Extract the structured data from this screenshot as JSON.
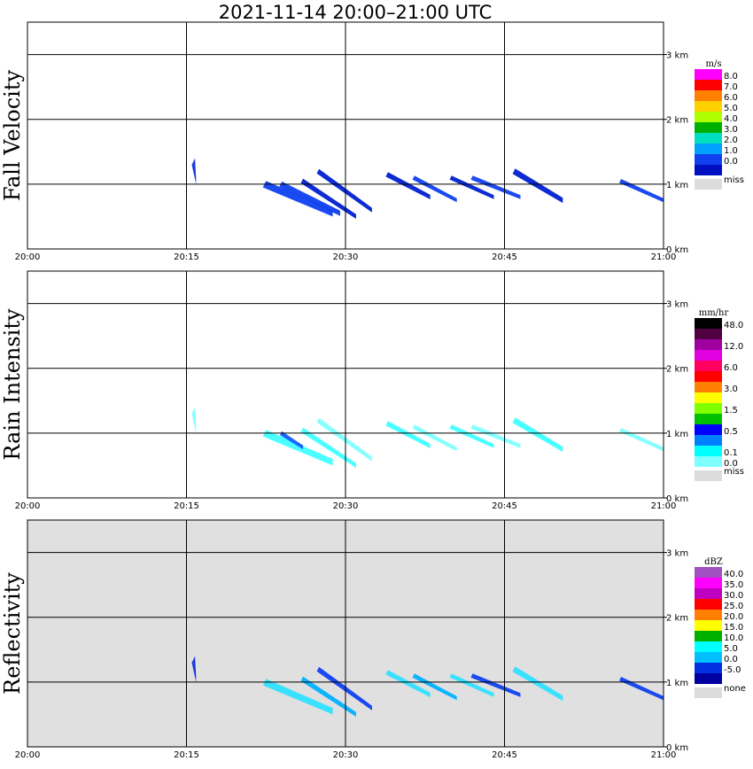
{
  "chart_data": {
    "type": "heatmap",
    "title": "2021-11-14   20:00–21:00 UTC",
    "x_ticks": [
      "20:00",
      "20:15",
      "20:30",
      "20:45",
      "21:00"
    ],
    "x_range_minutes": [
      0,
      60
    ],
    "y_range_km": [
      0,
      3.5
    ],
    "y_ticks": [
      "0 km",
      "1 km",
      "2 km",
      "3 km"
    ],
    "panels": [
      {
        "id": "fall",
        "ylabel": "Fall Velocity",
        "unit": "m/s",
        "background": "#ffffff",
        "legend": [
          {
            "label": "8.0",
            "color": "#ff00ff"
          },
          {
            "label": "7.0",
            "color": "#ff0000"
          },
          {
            "label": "6.0",
            "color": "#ff8000"
          },
          {
            "label": "5.0",
            "color": "#ffd000"
          },
          {
            "label": "4.0",
            "color": "#b0ff00"
          },
          {
            "label": "3.0",
            "color": "#00b000"
          },
          {
            "label": "2.0",
            "color": "#00e0c0"
          },
          {
            "label": "1.0",
            "color": "#00a0ff"
          },
          {
            "label": "0.0",
            "color": "#1040f0"
          },
          {
            "label": "",
            "color": "#0010c0"
          }
        ],
        "missing_label": "miss",
        "streaks": [
          {
            "t0": 15.8,
            "h0": 1.35,
            "t1": 15.9,
            "h1": 1.05,
            "w": 0.1,
            "color": "#1030e0"
          },
          {
            "t0": 22.5,
            "h0": 1.0,
            "t1": 28.8,
            "h1": 0.55,
            "w": 0.1,
            "color": "#1040f0"
          },
          {
            "t0": 24.0,
            "h0": 1.0,
            "t1": 29.5,
            "h1": 0.55,
            "w": 0.08,
            "color": "#1040f0"
          },
          {
            "t0": 26.0,
            "h0": 1.05,
            "t1": 31.0,
            "h1": 0.5,
            "w": 0.07,
            "color": "#0020d0"
          },
          {
            "t0": 27.5,
            "h0": 1.2,
            "t1": 32.5,
            "h1": 0.6,
            "w": 0.07,
            "color": "#0020d0"
          },
          {
            "t0": 34.0,
            "h0": 1.15,
            "t1": 38.0,
            "h1": 0.8,
            "w": 0.07,
            "color": "#0020d0"
          },
          {
            "t0": 36.5,
            "h0": 1.1,
            "t1": 40.5,
            "h1": 0.75,
            "w": 0.06,
            "color": "#1040f0"
          },
          {
            "t0": 40.0,
            "h0": 1.1,
            "t1": 44.0,
            "h1": 0.8,
            "w": 0.06,
            "color": "#0020d0"
          },
          {
            "t0": 42.0,
            "h0": 1.1,
            "t1": 46.5,
            "h1": 0.8,
            "w": 0.06,
            "color": "#1040f0"
          },
          {
            "t0": 46.0,
            "h0": 1.2,
            "t1": 50.5,
            "h1": 0.75,
            "w": 0.08,
            "color": "#0020d0"
          },
          {
            "t0": 56.0,
            "h0": 1.05,
            "t1": 60.0,
            "h1": 0.75,
            "w": 0.06,
            "color": "#1040f0"
          }
        ]
      },
      {
        "id": "rain",
        "ylabel": "Rain Intensity",
        "unit": "mm/hr",
        "background": "#ffffff",
        "legend": [
          {
            "label": "48.0",
            "color": "#000000"
          },
          {
            "label": "",
            "color": "#500040"
          },
          {
            "label": "12.0",
            "color": "#a000a0"
          },
          {
            "label": "",
            "color": "#e000e0"
          },
          {
            "label": "6.0",
            "color": "#ff0060"
          },
          {
            "label": "",
            "color": "#ff0000"
          },
          {
            "label": "3.0",
            "color": "#ff8000"
          },
          {
            "label": "",
            "color": "#ffff00"
          },
          {
            "label": "1.5",
            "color": "#80ff00"
          },
          {
            "label": "",
            "color": "#00c000"
          },
          {
            "label": "0.5",
            "color": "#0000ff"
          },
          {
            "label": "",
            "color": "#0080ff"
          },
          {
            "label": "0.1",
            "color": "#00ffff"
          },
          {
            "label": "0.0",
            "color": "#80ffff"
          }
        ],
        "missing_label": "miss",
        "streaks": [
          {
            "t0": 15.8,
            "h0": 1.35,
            "t1": 15.9,
            "h1": 1.05,
            "w": 0.1,
            "color": "#80ffff"
          },
          {
            "t0": 22.5,
            "h0": 1.0,
            "t1": 28.8,
            "h1": 0.55,
            "w": 0.1,
            "color": "#40ffff"
          },
          {
            "t0": 24.0,
            "h0": 1.0,
            "t1": 26.0,
            "h1": 0.78,
            "w": 0.06,
            "color": "#1060ff"
          },
          {
            "t0": 26.0,
            "h0": 1.05,
            "t1": 31.0,
            "h1": 0.5,
            "w": 0.07,
            "color": "#40ffff"
          },
          {
            "t0": 27.5,
            "h0": 1.2,
            "t1": 32.5,
            "h1": 0.6,
            "w": 0.07,
            "color": "#80ffff"
          },
          {
            "t0": 34.0,
            "h0": 1.15,
            "t1": 38.0,
            "h1": 0.8,
            "w": 0.07,
            "color": "#40ffff"
          },
          {
            "t0": 36.5,
            "h0": 1.1,
            "t1": 40.5,
            "h1": 0.75,
            "w": 0.06,
            "color": "#80ffff"
          },
          {
            "t0": 40.0,
            "h0": 1.1,
            "t1": 44.0,
            "h1": 0.8,
            "w": 0.06,
            "color": "#40ffff"
          },
          {
            "t0": 42.0,
            "h0": 1.1,
            "t1": 46.5,
            "h1": 0.8,
            "w": 0.06,
            "color": "#80ffff"
          },
          {
            "t0": 46.0,
            "h0": 1.2,
            "t1": 50.5,
            "h1": 0.75,
            "w": 0.08,
            "color": "#40ffff"
          },
          {
            "t0": 56.0,
            "h0": 1.05,
            "t1": 60.0,
            "h1": 0.75,
            "w": 0.06,
            "color": "#80ffff"
          }
        ]
      },
      {
        "id": "refl",
        "ylabel": "Reflectivity",
        "unit": "dBZ",
        "background": "#e0e0e0",
        "legend": [
          {
            "label": "40.0",
            "color": "#a050c0"
          },
          {
            "label": "35.0",
            "color": "#ff00ff"
          },
          {
            "label": "30.0",
            "color": "#c000c0"
          },
          {
            "label": "25.0",
            "color": "#ff0000"
          },
          {
            "label": "20.0",
            "color": "#ff8000"
          },
          {
            "label": "15.0",
            "color": "#ffff00"
          },
          {
            "label": "10.0",
            "color": "#00b000"
          },
          {
            "label": "5.0",
            "color": "#00ffff"
          },
          {
            "label": "0.0",
            "color": "#00c0ff"
          },
          {
            "label": "-5.0",
            "color": "#0030e0"
          },
          {
            "label": "",
            "color": "#0000a0"
          }
        ],
        "missing_label": "none",
        "streaks": [
          {
            "t0": 15.8,
            "h0": 1.35,
            "t1": 15.9,
            "h1": 1.05,
            "w": 0.1,
            "color": "#1030e0"
          },
          {
            "t0": 22.5,
            "h0": 1.0,
            "t1": 28.8,
            "h1": 0.55,
            "w": 0.1,
            "color": "#30e0ff"
          },
          {
            "t0": 26.0,
            "h0": 1.05,
            "t1": 31.0,
            "h1": 0.5,
            "w": 0.07,
            "color": "#00b0ff"
          },
          {
            "t0": 27.5,
            "h0": 1.2,
            "t1": 32.5,
            "h1": 0.6,
            "w": 0.07,
            "color": "#1040f0"
          },
          {
            "t0": 34.0,
            "h0": 1.15,
            "t1": 38.0,
            "h1": 0.8,
            "w": 0.07,
            "color": "#30e0ff"
          },
          {
            "t0": 36.5,
            "h0": 1.1,
            "t1": 40.5,
            "h1": 0.75,
            "w": 0.06,
            "color": "#00b0ff"
          },
          {
            "t0": 40.0,
            "h0": 1.1,
            "t1": 44.0,
            "h1": 0.8,
            "w": 0.06,
            "color": "#30e0ff"
          },
          {
            "t0": 42.0,
            "h0": 1.1,
            "t1": 46.5,
            "h1": 0.8,
            "w": 0.06,
            "color": "#1040f0"
          },
          {
            "t0": 46.0,
            "h0": 1.2,
            "t1": 50.5,
            "h1": 0.75,
            "w": 0.08,
            "color": "#30e0ff"
          },
          {
            "t0": 56.0,
            "h0": 1.05,
            "t1": 60.0,
            "h1": 0.75,
            "w": 0.06,
            "color": "#1040f0"
          }
        ]
      }
    ]
  }
}
